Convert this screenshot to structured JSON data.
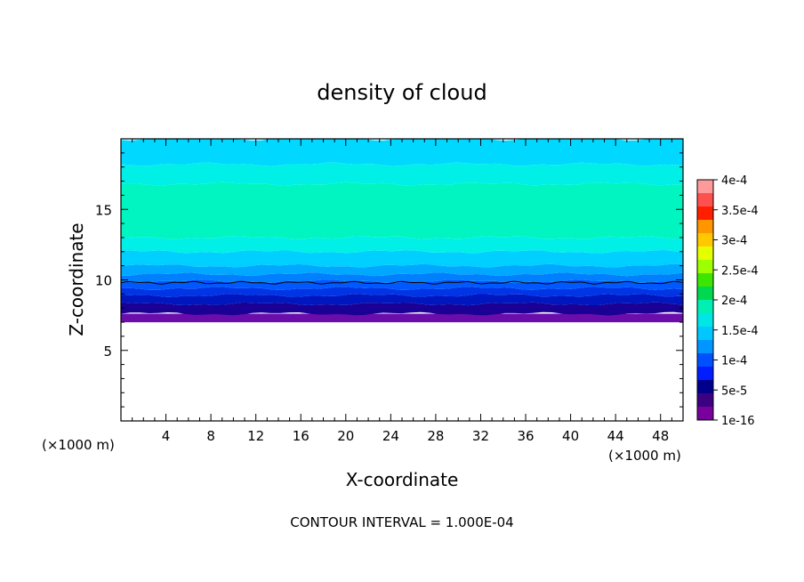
{
  "chart_data": {
    "type": "heatmap",
    "title": "density of cloud",
    "xlabel": "X-coordinate",
    "ylabel": "Z-coordinate",
    "x_unit_left": "(×1000 m)",
    "x_unit_right": "(×1000 m)",
    "xlim": [
      0,
      50
    ],
    "ylim": [
      0,
      20
    ],
    "x_ticks": [
      4,
      8,
      12,
      16,
      20,
      24,
      28,
      32,
      36,
      40,
      44,
      48
    ],
    "y_ticks": [
      5,
      10,
      15
    ],
    "footer": "CONTOUR INTERVAL = 1.000E-04",
    "cloud_base_km": 7.0,
    "contour_line_km": 9.8,
    "layers": [
      {
        "z0": 7.0,
        "z1": 7.6,
        "color": "#6a0dab"
      },
      {
        "z0": 7.6,
        "z1": 8.3,
        "color": "#1a0094"
      },
      {
        "z0": 8.3,
        "z1": 8.9,
        "color": "#0016bf"
      },
      {
        "z0": 8.9,
        "z1": 9.4,
        "color": "#0035e6"
      },
      {
        "z0": 9.4,
        "z1": 9.9,
        "color": "#0058ff"
      },
      {
        "z0": 9.9,
        "z1": 10.4,
        "color": "#0080ff"
      },
      {
        "z0": 10.4,
        "z1": 11.0,
        "color": "#00a8ff"
      },
      {
        "z0": 11.0,
        "z1": 12.0,
        "color": "#00d0ff"
      },
      {
        "z0": 12.0,
        "z1": 13.0,
        "color": "#00f0e8"
      },
      {
        "z0": 13.0,
        "z1": 16.8,
        "color": "#00f5c0"
      },
      {
        "z0": 16.8,
        "z1": 18.2,
        "color": "#00f0e8"
      },
      {
        "z0": 18.2,
        "z1": 20.0,
        "color": "#00d8ff"
      }
    ],
    "colorbar": {
      "labels": [
        "4e-4",
        "3.5e-4",
        "3e-4",
        "2.5e-4",
        "2e-4",
        "1.5e-4",
        "1e-4",
        "5e-5",
        "1e-16"
      ],
      "colors": [
        "#ff9a9a",
        "#ff5050",
        "#ff1e00",
        "#ff9600",
        "#ffc800",
        "#e6ff00",
        "#9dff00",
        "#3ce600",
        "#00d850",
        "#00f0b4",
        "#00e6e6",
        "#00c8ff",
        "#0096ff",
        "#0050ff",
        "#001eff",
        "#00008c",
        "#3c0082",
        "#78009b"
      ]
    }
  }
}
